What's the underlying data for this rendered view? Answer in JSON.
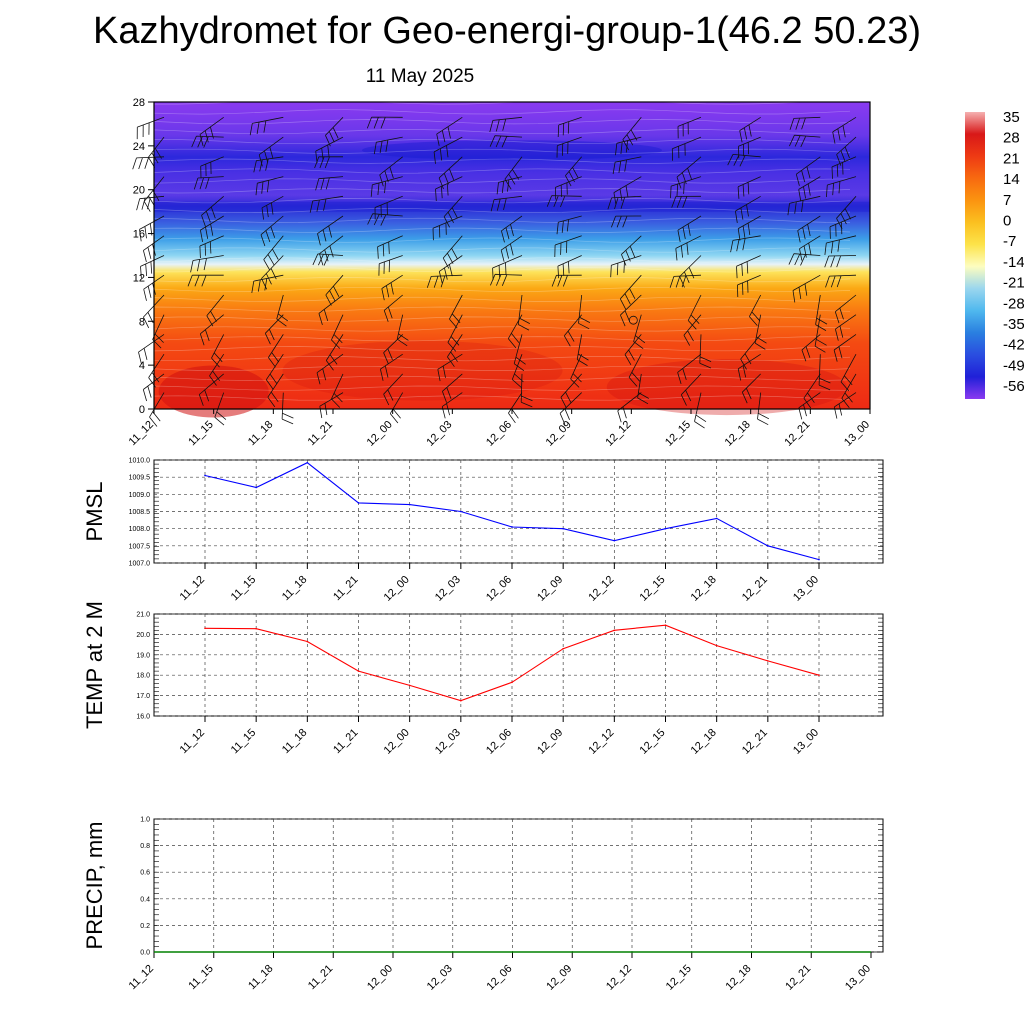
{
  "title": "Kazhydromet for Geo-energi-group-1(46.2 50.23)",
  "date": "11 May 2025",
  "time_labels": [
    "11_12",
    "11_15",
    "11_18",
    "11_21",
    "12_00",
    "12_03",
    "12_06",
    "12_09",
    "12_12",
    "12_15",
    "12_18",
    "12_21",
    "13_00"
  ],
  "chart_data": [
    {
      "type": "heatmap",
      "name": "vertical temperature cross-section",
      "x": [
        "11_12",
        "11_15",
        "11_18",
        "11_21",
        "12_00",
        "12_03",
        "12_06",
        "12_09",
        "12_12",
        "12_15",
        "12_18",
        "12_21",
        "13_00"
      ],
      "y_ticks": [
        0,
        4,
        8,
        12,
        16,
        20,
        24,
        28
      ],
      "ylim": [
        0,
        28
      ],
      "colorbar": {
        "labels": [
          "35",
          "28",
          "21",
          "14",
          "7",
          "0",
          "-7",
          "-14",
          "-21",
          "-28",
          "-35",
          "-42",
          "-49",
          "-56"
        ],
        "colors": [
          "#f5b0b0",
          "#d81818",
          "#ee3a14",
          "#f86a10",
          "#fb9410",
          "#fbc020",
          "#fde34a",
          "#fdfdc0",
          "#9ad6ee",
          "#4fb8ee",
          "#2a7fe0",
          "#2a4de0",
          "#2020d8",
          "#8a3af0"
        ]
      },
      "layers": [
        {
          "z": 0,
          "color": "#ee2a14"
        },
        {
          "z": 6,
          "color": "#f44a12"
        },
        {
          "z": 9,
          "color": "#f97a12"
        },
        {
          "z": 11,
          "color": "#fba814"
        },
        {
          "z": 12.5,
          "color": "#fde35a"
        },
        {
          "z": 13.2,
          "color": "#e8f3f8"
        },
        {
          "z": 14,
          "color": "#8ed6f2"
        },
        {
          "z": 15.5,
          "color": "#3c9ee8"
        },
        {
          "z": 17,
          "color": "#3a5ee0"
        },
        {
          "z": 18.5,
          "color": "#2a2ad6"
        },
        {
          "z": 19.5,
          "color": "#5a3ae6"
        },
        {
          "z": 21.5,
          "color": "#4a30e4"
        },
        {
          "z": 23,
          "color": "#2c28dc"
        },
        {
          "z": 25,
          "color": "#6a38ea"
        },
        {
          "z": 28,
          "color": "#8a3af0"
        }
      ]
    },
    {
      "type": "line",
      "name": "PMSL",
      "ylabel": "PMSL",
      "x": [
        "11_12",
        "11_15",
        "11_18",
        "11_21",
        "12_00",
        "12_03",
        "12_06",
        "12_09",
        "12_12",
        "12_15",
        "12_18",
        "12_21",
        "13_00"
      ],
      "values": [
        1009.55,
        1009.2,
        1009.92,
        1008.75,
        1008.7,
        1008.5,
        1008.05,
        1008.0,
        1007.65,
        1008.0,
        1008.3,
        1007.5,
        1007.1
      ],
      "ylim": [
        1007.0,
        1010.0
      ],
      "ytick_labels": [
        "1010.0",
        "1009.5",
        "1009.0",
        "1008.5",
        "1008.0",
        "1007.5",
        "1007.0"
      ],
      "color": "#0000ff"
    },
    {
      "type": "line",
      "name": "TEMP at 2 M",
      "ylabel": "TEMP at 2 M",
      "x": [
        "11_12",
        "11_15",
        "11_18",
        "11_21",
        "12_00",
        "12_03",
        "12_06",
        "12_09",
        "12_12",
        "12_15",
        "12_18",
        "12_21",
        "13_00"
      ],
      "values": [
        20.3,
        20.28,
        19.65,
        18.2,
        17.5,
        16.75,
        17.65,
        19.3,
        20.2,
        20.45,
        19.45,
        18.7,
        18.0
      ],
      "ylim": [
        16.0,
        21.0
      ],
      "ytick_labels": [
        "21.0",
        "20.0",
        "19.0",
        "18.0",
        "17.0",
        "16.0"
      ],
      "color": "#ff0000"
    },
    {
      "type": "line",
      "name": "PRECIP, mm",
      "ylabel": "PRECIP, mm",
      "x": [
        "11_12",
        "11_15",
        "11_18",
        "11_21",
        "12_00",
        "12_03",
        "12_06",
        "12_09",
        "12_12",
        "12_15",
        "12_18",
        "12_21",
        "13_00"
      ],
      "values": [
        0,
        0,
        0,
        0,
        0,
        0,
        0,
        0,
        0,
        0,
        0,
        0,
        0
      ],
      "ylim": [
        0.0,
        1.0
      ],
      "ytick_labels": [
        "1.0",
        "0.8",
        "0.6",
        "0.4",
        "0.2",
        "0.0"
      ],
      "color": "#008000"
    }
  ]
}
